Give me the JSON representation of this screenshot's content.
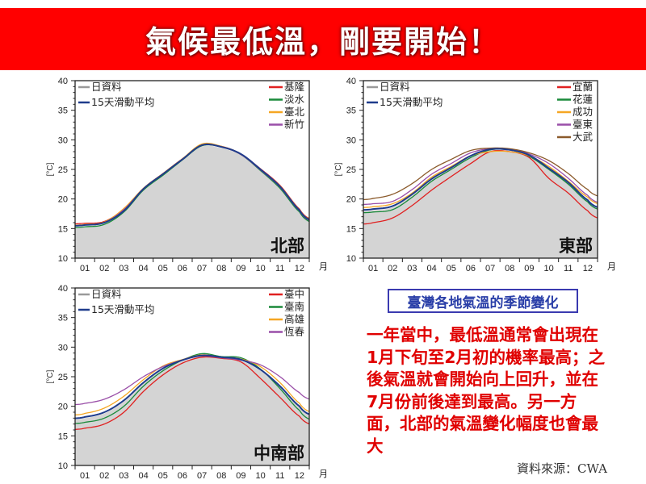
{
  "banner": {
    "title": "氣候最低溫，剛要開始！",
    "color": "#ff0000"
  },
  "note": {
    "title": "臺灣各地氣溫的季節變化",
    "body": "一年當中，最低溫通常會出現在1月下旬至2月初的機率最高；之後氣溫就會開始向上回升，並在7月份前後達到最高。另一方面，北部的氣溫變化幅度也會最大",
    "source": "資料來源：CWA"
  },
  "chart_data": [
    {
      "type": "line",
      "region_label": "北部",
      "ylabel": "[°C]",
      "xlabel": "月",
      "ylim": [
        10,
        40
      ],
      "yticks": [
        "10",
        "15",
        "20",
        "25",
        "30",
        "35",
        "40"
      ],
      "categories": [
        "01",
        "02",
        "03",
        "04",
        "05",
        "06",
        "07",
        "08",
        "09",
        "10",
        "11",
        "12"
      ],
      "legend_left": [
        {
          "name": "日資料",
          "color": "#999999"
        },
        {
          "name": "15天滑動平均",
          "color": "#1f3c8c"
        }
      ],
      "daily_fill_color": "#d4d4d4",
      "average": [
        15.6,
        16.0,
        18.0,
        21.7,
        24.2,
        26.7,
        29.1,
        28.8,
        27.6,
        25.0,
        22.1,
        18.1
      ],
      "series": [
        {
          "name": "基隆",
          "color": "#e02020",
          "values": [
            15.9,
            16.2,
            18.3,
            21.8,
            24.3,
            26.8,
            29.1,
            28.9,
            27.6,
            25.1,
            22.3,
            18.3
          ]
        },
        {
          "name": "淡水",
          "color": "#1a8a3a",
          "values": [
            15.3,
            15.7,
            17.8,
            21.5,
            24.0,
            26.6,
            29.0,
            28.8,
            27.5,
            24.8,
            21.8,
            17.8
          ]
        },
        {
          "name": "臺北",
          "color": "#f5a623",
          "values": [
            15.7,
            16.1,
            18.4,
            21.8,
            24.3,
            26.8,
            29.3,
            28.9,
            27.6,
            25.0,
            22.2,
            18.2
          ]
        },
        {
          "name": "新竹",
          "color": "#9a4fa8",
          "values": [
            15.6,
            16.0,
            18.2,
            21.7,
            24.2,
            26.7,
            29.1,
            28.8,
            27.5,
            24.9,
            22.0,
            18.0
          ]
        }
      ]
    },
    {
      "type": "line",
      "region_label": "東部",
      "ylabel": "[°C]",
      "xlabel": "月",
      "ylim": [
        10,
        40
      ],
      "yticks": [
        "10",
        "15",
        "20",
        "25",
        "30",
        "35",
        "40"
      ],
      "categories": [
        "01",
        "02",
        "03",
        "04",
        "05",
        "06",
        "07",
        "08",
        "09",
        "10",
        "11",
        "12"
      ],
      "legend_left": [
        {
          "name": "日資料",
          "color": "#999999"
        },
        {
          "name": "15天滑動平均",
          "color": "#1f3c8c"
        }
      ],
      "daily_fill_color": "#d4d4d4",
      "average": [
        18.3,
        18.8,
        20.8,
        23.4,
        25.3,
        27.3,
        28.4,
        28.3,
        27.4,
        25.2,
        22.8,
        19.8
      ],
      "series": [
        {
          "name": "宜蘭",
          "color": "#e02020",
          "values": [
            16.0,
            16.8,
            18.9,
            21.5,
            23.8,
            26.0,
            28.0,
            28.0,
            27.0,
            23.5,
            21.0,
            18.0
          ]
        },
        {
          "name": "花蓮",
          "color": "#1a8a3a",
          "values": [
            17.8,
            18.2,
            20.3,
            23.0,
            25.0,
            27.0,
            28.3,
            28.3,
            27.2,
            25.0,
            22.5,
            19.5
          ]
        },
        {
          "name": "成功",
          "color": "#f5a623",
          "values": [
            18.7,
            19.2,
            21.0,
            23.7,
            25.5,
            27.3,
            28.0,
            28.0,
            27.3,
            25.5,
            23.0,
            20.3
          ]
        },
        {
          "name": "臺東",
          "color": "#9a4fa8",
          "values": [
            19.2,
            19.6,
            21.6,
            24.2,
            26.0,
            27.8,
            28.5,
            28.4,
            27.6,
            26.0,
            23.5,
            20.6
          ]
        },
        {
          "name": "大武",
          "color": "#8b5a2b",
          "values": [
            20.1,
            20.8,
            22.6,
            25.0,
            26.7,
            28.2,
            28.6,
            28.5,
            27.8,
            26.5,
            24.3,
            21.6
          ]
        }
      ]
    },
    {
      "type": "line",
      "region_label": "中南部",
      "ylabel": "[°C]",
      "xlabel": "月",
      "ylim": [
        10,
        40
      ],
      "yticks": [
        "10",
        "15",
        "20",
        "25",
        "30",
        "35",
        "40"
      ],
      "categories": [
        "01",
        "02",
        "03",
        "04",
        "05",
        "06",
        "07",
        "08",
        "09",
        "10",
        "11",
        "12"
      ],
      "legend_left": [
        {
          "name": "日資料",
          "color": "#999999"
        },
        {
          "name": "15天滑動平均",
          "color": "#1f3c8c"
        }
      ],
      "daily_fill_color": "#d4d4d4",
      "average": [
        18.2,
        19.0,
        21.0,
        24.0,
        26.4,
        27.8,
        28.6,
        28.3,
        27.9,
        26.2,
        23.4,
        20.0
      ],
      "series": [
        {
          "name": "臺中",
          "color": "#e02020",
          "values": [
            16.3,
            17.0,
            19.0,
            22.5,
            25.3,
            27.3,
            28.3,
            28.1,
            27.5,
            24.7,
            21.5,
            18.3
          ]
        },
        {
          "name": "臺南",
          "color": "#1a8a3a",
          "values": [
            17.3,
            18.0,
            20.0,
            23.4,
            26.0,
            27.8,
            28.9,
            28.4,
            28.2,
            26.3,
            23.0,
            19.3
          ]
        },
        {
          "name": "高雄",
          "color": "#f5a623",
          "values": [
            18.8,
            19.7,
            21.7,
            24.5,
            26.8,
            27.9,
            28.7,
            28.3,
            28.0,
            26.7,
            24.0,
            20.5
          ]
        },
        {
          "name": "恆春",
          "color": "#9a4fa8",
          "values": [
            20.5,
            21.2,
            22.8,
            25.0,
            26.7,
            27.8,
            28.5,
            28.2,
            27.8,
            27.0,
            25.0,
            22.3
          ]
        }
      ]
    }
  ]
}
